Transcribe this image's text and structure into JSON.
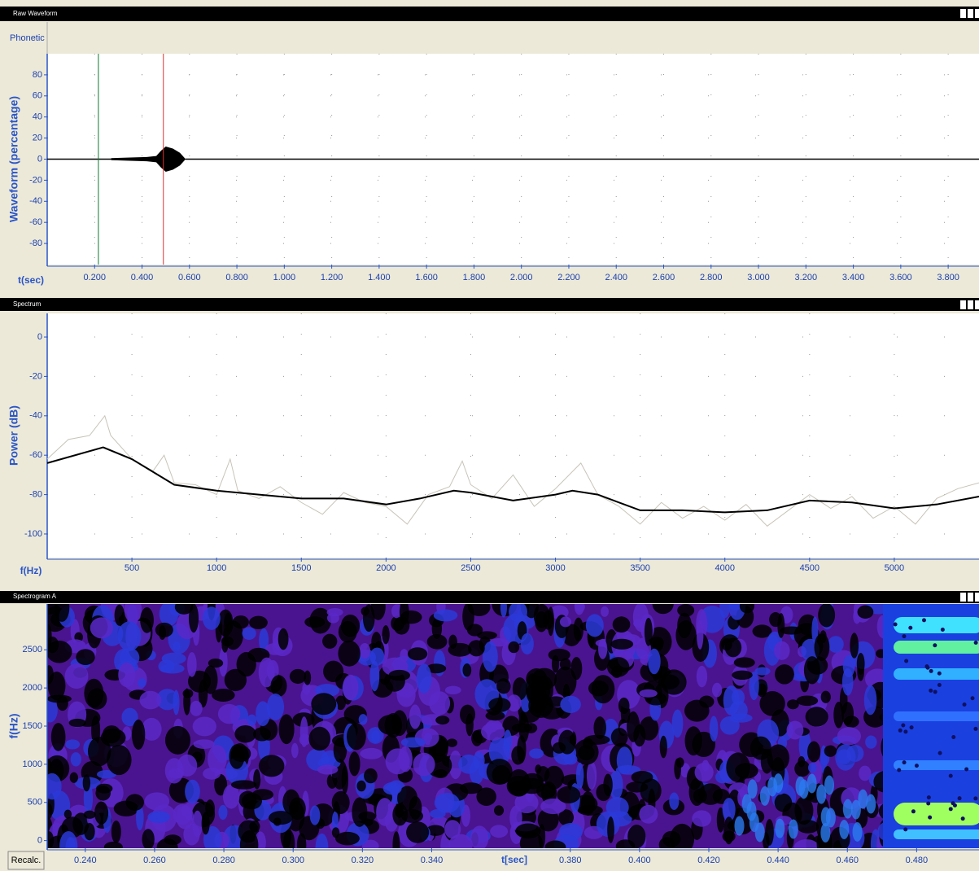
{
  "windows": [
    {
      "title": "Raw Waveform",
      "tab": "Phonetic",
      "chart_data": {
        "type": "line",
        "y_label": "Waveform (percentage)",
        "x_label": "t(sec)",
        "xlim": [
          0,
          3.93
        ],
        "ylim": [
          -100,
          100
        ],
        "yticks": [
          -80,
          -60,
          -40,
          -20,
          0,
          20,
          40,
          60,
          80
        ],
        "xticks": [
          {
            "value": 0.2,
            "label": "0.200"
          },
          {
            "value": 0.4,
            "label": "0.400"
          },
          {
            "value": 0.6,
            "label": "0.600"
          },
          {
            "value": 0.8,
            "label": "0.800"
          },
          {
            "value": 1.0,
            "label": "1.000"
          },
          {
            "value": 1.2,
            "label": "1.200"
          },
          {
            "value": 1.4,
            "label": "1.400"
          },
          {
            "value": 1.6,
            "label": "1.600"
          },
          {
            "value": 1.8,
            "label": "1.800"
          },
          {
            "value": 2.0,
            "label": "2.000"
          },
          {
            "value": 2.2,
            "label": "2.200"
          },
          {
            "value": 2.4,
            "label": "2.400"
          },
          {
            "value": 2.6,
            "label": "2.600"
          },
          {
            "value": 2.8,
            "label": "2.800"
          },
          {
            "value": 3.0,
            "label": "3.000"
          },
          {
            "value": 3.2,
            "label": "3.200"
          },
          {
            "value": 3.4,
            "label": "3.400"
          },
          {
            "value": 3.6,
            "label": "3.600"
          },
          {
            "value": 3.8,
            "label": "3.800"
          }
        ],
        "cursors": [
          {
            "color": "#0a7a2a",
            "x": 0.216
          },
          {
            "color": "#e0302a",
            "x": 0.49
          }
        ],
        "envelope": {
          "color": "#000000",
          "x": [
            0.27,
            0.35,
            0.42,
            0.46,
            0.48,
            0.5,
            0.53,
            0.56,
            0.58
          ],
          "values": [
            1,
            1.5,
            2,
            3,
            8,
            12,
            10,
            6,
            1
          ]
        }
      }
    },
    {
      "title": "Spectrum",
      "chart_data": {
        "type": "line",
        "y_label": "Power (dB)",
        "x_label": "f(Hz)",
        "xlim": [
          0,
          5500
        ],
        "ylim": [
          -112,
          12
        ],
        "yticks": [
          -100,
          -80,
          -60,
          -40,
          -20,
          0
        ],
        "xticks": [
          500,
          1000,
          1500,
          2000,
          2500,
          3000,
          3500,
          4000,
          4500,
          5000
        ],
        "series": [
          {
            "color": "#c8c4b8",
            "x": [
              0,
              125,
              250,
              340,
              375,
              500,
              625,
              690,
              750,
              875,
              1000,
              1080,
              1125,
              1250,
              1375,
              1500,
              1625,
              1750,
              1875,
              2000,
              2125,
              2250,
              2375,
              2450,
              2500,
              2625,
              2750,
              2875,
              3000,
              3150,
              3250,
              3375,
              3500,
              3625,
              3750,
              3875,
              4000,
              4125,
              4250,
              4375,
              4500,
              4625,
              4750,
              4875,
              5000,
              5125,
              5250,
              5375,
              5500
            ],
            "values": [
              -62,
              -52,
              -50,
              -40,
              -50,
              -62,
              -68,
              -60,
              -74,
              -75,
              -80,
              -62,
              -78,
              -82,
              -76,
              -84,
              -90,
              -79,
              -84,
              -86,
              -95,
              -80,
              -76,
              -63,
              -75,
              -82,
              -70,
              -86,
              -77,
              -64,
              -80,
              -86,
              -95,
              -84,
              -92,
              -86,
              -93,
              -85,
              -96,
              -88,
              -80,
              -87,
              -81,
              -92,
              -86,
              -95,
              -82,
              -77,
              -74
            ]
          },
          {
            "color": "#000000",
            "x": [
              0,
              330,
              500,
              750,
              1000,
              1250,
              1500,
              1750,
              2000,
              2200,
              2400,
              2500,
              2750,
              3000,
              3100,
              3250,
              3500,
              3750,
              4000,
              4250,
              4500,
              4750,
              5000,
              5250,
              5500
            ],
            "values": [
              -64,
              -56,
              -62,
              -75,
              -78,
              -80,
              -82,
              -82,
              -85,
              -82,
              -78,
              -79,
              -83,
              -80,
              -78,
              -80,
              -88,
              -88,
              -89,
              -88,
              -83,
              -84,
              -87,
              -85,
              -81
            ]
          }
        ]
      }
    },
    {
      "title": "Spectrogram A",
      "button": "Recalc.",
      "chart_data": {
        "type": "heatmap",
        "y_label": "f(Hz)",
        "x_label": "t[sec]",
        "xlim": [
          0.229,
          0.498
        ],
        "ylim": [
          -100,
          3100
        ],
        "yticks": [
          0,
          500,
          1000,
          1500,
          2000,
          2500
        ],
        "xticks": [
          {
            "value": 0.24,
            "label": "0.240"
          },
          {
            "value": 0.26,
            "label": "0.260"
          },
          {
            "value": 0.28,
            "label": "0.280"
          },
          {
            "value": 0.3,
            "label": "0.300"
          },
          {
            "value": 0.32,
            "label": "0.320"
          },
          {
            "value": 0.34,
            "label": "0.340"
          },
          {
            "value": 0.38,
            "label": "0.380"
          },
          {
            "value": 0.4,
            "label": "0.400"
          },
          {
            "value": 0.42,
            "label": "0.420"
          },
          {
            "value": 0.44,
            "label": "0.440"
          },
          {
            "value": 0.46,
            "label": "0.460"
          },
          {
            "value": 0.48,
            "label": "0.480"
          }
        ]
      }
    }
  ]
}
